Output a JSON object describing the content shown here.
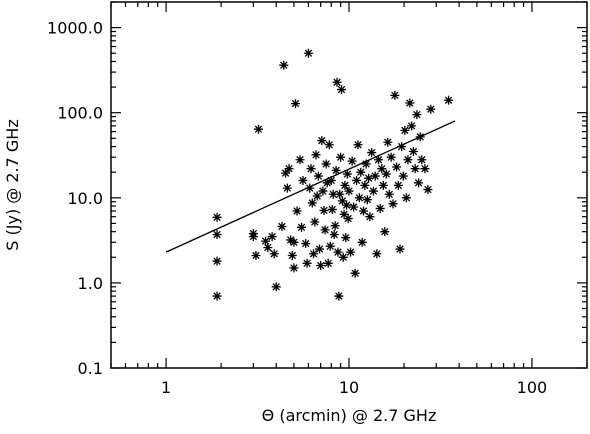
{
  "chart_data": {
    "type": "scatter",
    "xlabel": "Θ (arcmin) @ 2.7 GHz",
    "ylabel": "S (Jy) @ 2.7 GHz",
    "x_scale": "log",
    "y_scale": "log",
    "xlim": [
      0.5,
      200
    ],
    "ylim": [
      0.1,
      2000
    ],
    "grid": false,
    "marker": "asterisk",
    "x_ticks": [
      {
        "value": 1,
        "label": "1"
      },
      {
        "value": 10,
        "label": "10"
      },
      {
        "value": 100,
        "label": "100"
      }
    ],
    "y_ticks": [
      {
        "value": 0.1,
        "label": "0.1"
      },
      {
        "value": 1,
        "label": "1.0"
      },
      {
        "value": 10,
        "label": "10.0"
      },
      {
        "value": 100,
        "label": "100.0"
      },
      {
        "value": 1000,
        "label": "1000.0"
      }
    ],
    "fit_line": {
      "x": [
        1,
        38
      ],
      "y": [
        2.3,
        80
      ]
    },
    "points": [
      [
        1.9,
        5.9
      ],
      [
        1.9,
        3.7
      ],
      [
        1.9,
        1.8
      ],
      [
        1.9,
        0.7
      ],
      [
        3.0,
        3.8
      ],
      [
        3.0,
        3.5
      ],
      [
        3.1,
        2.1
      ],
      [
        3.2,
        64
      ],
      [
        3.5,
        3.1
      ],
      [
        3.6,
        2.6
      ],
      [
        3.8,
        3.5
      ],
      [
        3.9,
        2.2
      ],
      [
        4.0,
        0.9
      ],
      [
        4.3,
        4.6
      ],
      [
        4.4,
        362
      ],
      [
        4.5,
        19.5
      ],
      [
        4.6,
        13
      ],
      [
        4.7,
        22
      ],
      [
        4.8,
        3.2
      ],
      [
        4.9,
        2.1
      ],
      [
        5.0,
        1.5
      ],
      [
        5.0,
        3.0
      ],
      [
        5.1,
        128
      ],
      [
        5.2,
        7.0
      ],
      [
        5.4,
        28
      ],
      [
        5.5,
        4.5
      ],
      [
        5.6,
        16
      ],
      [
        5.8,
        2.9
      ],
      [
        5.9,
        1.7
      ],
      [
        6.0,
        500
      ],
      [
        6.1,
        13
      ],
      [
        6.2,
        22
      ],
      [
        6.3,
        8.7
      ],
      [
        6.4,
        2.2
      ],
      [
        6.5,
        5.2
      ],
      [
        6.6,
        32
      ],
      [
        6.7,
        10.5
      ],
      [
        6.8,
        18
      ],
      [
        6.9,
        2.5
      ],
      [
        7.0,
        1.6
      ],
      [
        7.1,
        47
      ],
      [
        7.2,
        12
      ],
      [
        7.3,
        7.1
      ],
      [
        7.4,
        4.2
      ],
      [
        7.5,
        25
      ],
      [
        7.6,
        15
      ],
      [
        7.7,
        1.7
      ],
      [
        7.8,
        42
      ],
      [
        7.9,
        2.7
      ],
      [
        8.0,
        16
      ],
      [
        8.1,
        7.3
      ],
      [
        8.2,
        11
      ],
      [
        8.3,
        3.7
      ],
      [
        8.4,
        4.7
      ],
      [
        8.5,
        21
      ],
      [
        8.6,
        228
      ],
      [
        8.7,
        2.3
      ],
      [
        8.8,
        0.7
      ],
      [
        8.9,
        11
      ],
      [
        9.0,
        30
      ],
      [
        9.1,
        187
      ],
      [
        9.2,
        9.2
      ],
      [
        9.3,
        2.0
      ],
      [
        9.4,
        6.4
      ],
      [
        9.5,
        14
      ],
      [
        9.6,
        3.4
      ],
      [
        9.7,
        8.2
      ],
      [
        9.8,
        19
      ],
      [
        9.9,
        5.7
      ],
      [
        10.0,
        12
      ],
      [
        10.2,
        2.3
      ],
      [
        10.4,
        27
      ],
      [
        10.6,
        7.8
      ],
      [
        10.8,
        1.3
      ],
      [
        11.0,
        16
      ],
      [
        11.2,
        42
      ],
      [
        11.4,
        10
      ],
      [
        11.6,
        20
      ],
      [
        11.8,
        3.0
      ],
      [
        12.0,
        7.0
      ],
      [
        12.2,
        14
      ],
      [
        12.4,
        25
      ],
      [
        12.6,
        9.5
      ],
      [
        12.8,
        17
      ],
      [
        13.0,
        6.0
      ],
      [
        13.3,
        34
      ],
      [
        13.6,
        12
      ],
      [
        13.9,
        18
      ],
      [
        14.2,
        2.2
      ],
      [
        14.5,
        28
      ],
      [
        14.8,
        7.5
      ],
      [
        15.1,
        22
      ],
      [
        15.4,
        14
      ],
      [
        15.7,
        4.0
      ],
      [
        16.0,
        19
      ],
      [
        16.3,
        45
      ],
      [
        16.6,
        11
      ],
      [
        17.0,
        30
      ],
      [
        17.4,
        8.5
      ],
      [
        17.8,
        160
      ],
      [
        18.2,
        23
      ],
      [
        18.6,
        14
      ],
      [
        19.0,
        2.5
      ],
      [
        19.4,
        40
      ],
      [
        19.8,
        18
      ],
      [
        20.2,
        62
      ],
      [
        20.6,
        10
      ],
      [
        21.0,
        28
      ],
      [
        21.5,
        130
      ],
      [
        22.0,
        70
      ],
      [
        22.5,
        35
      ],
      [
        23.0,
        22
      ],
      [
        23.5,
        95
      ],
      [
        24.0,
        15
      ],
      [
        24.5,
        52
      ],
      [
        25.0,
        28
      ],
      [
        26.0,
        22
      ],
      [
        27.0,
        12.5
      ],
      [
        28.0,
        110
      ],
      [
        35.0,
        140
      ]
    ]
  }
}
